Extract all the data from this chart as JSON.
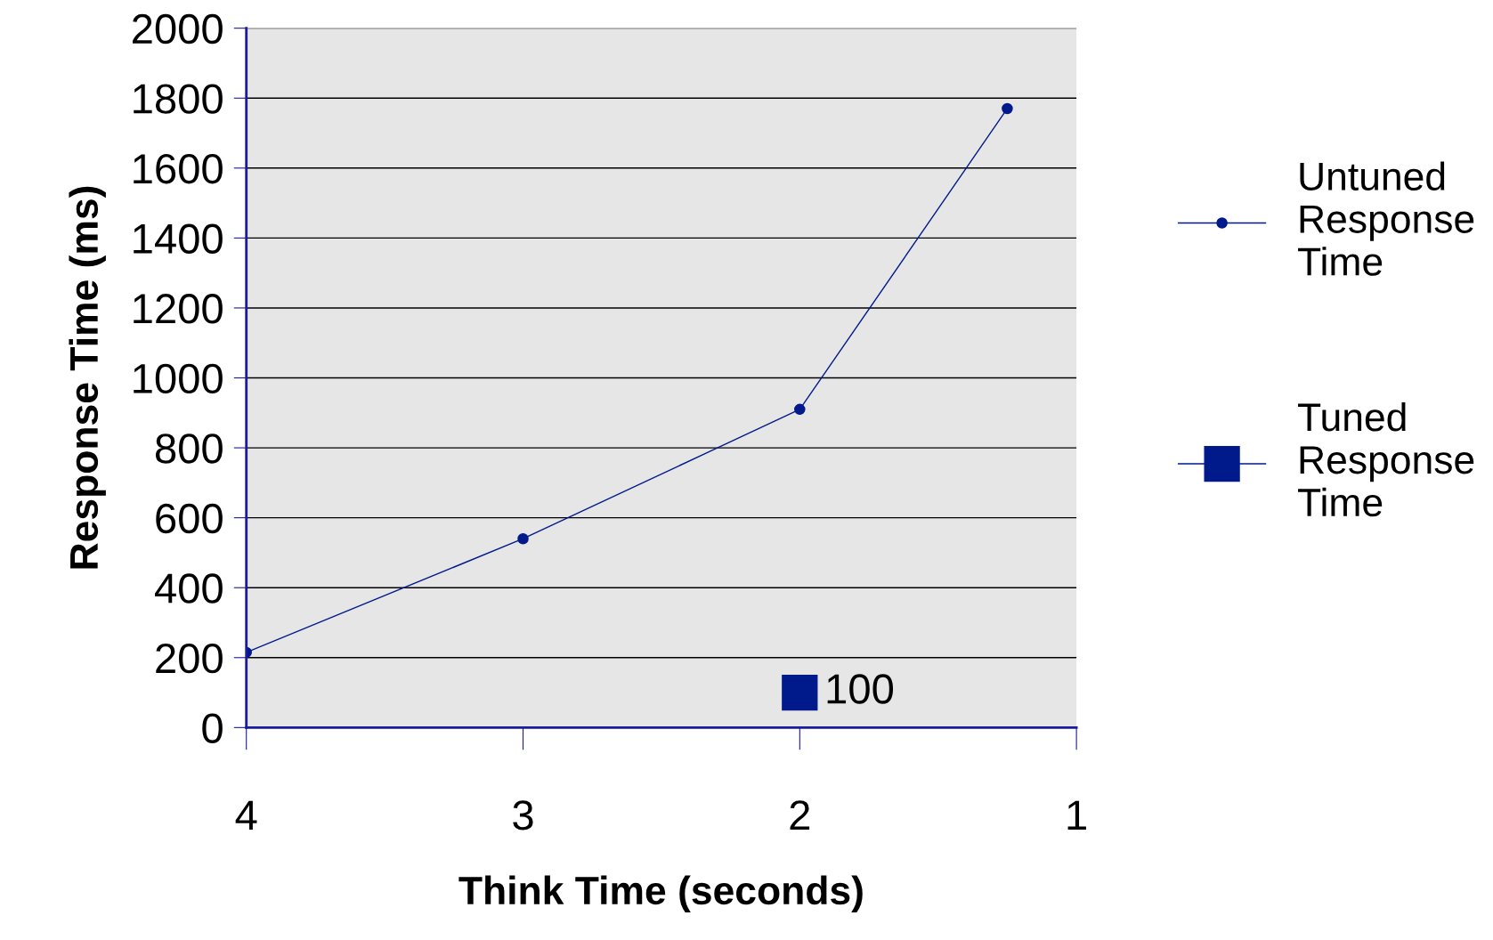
{
  "chart_data": {
    "type": "line",
    "xlabel": "Think Time (seconds)",
    "ylabel": "Response Time (ms)",
    "xlim": [
      4,
      1
    ],
    "xticks": [
      4,
      3,
      2,
      1
    ],
    "ylim": [
      0,
      2000
    ],
    "yticks": [
      0,
      200,
      400,
      600,
      800,
      1000,
      1200,
      1400,
      1600,
      1800,
      2000
    ],
    "grid": "y",
    "legend": "right",
    "series": [
      {
        "name": "Untuned Response Time",
        "color": "#001a8c",
        "marker": "circle",
        "x": [
          4,
          3,
          2,
          1.25
        ],
        "values": [
          215,
          540,
          910,
          1770
        ]
      },
      {
        "name": "Tuned Response Time",
        "color": "#001a8c",
        "type": "scatter",
        "marker": "square",
        "x": [
          2
        ],
        "values": [
          100
        ],
        "value_labels": [
          "100"
        ]
      }
    ]
  }
}
